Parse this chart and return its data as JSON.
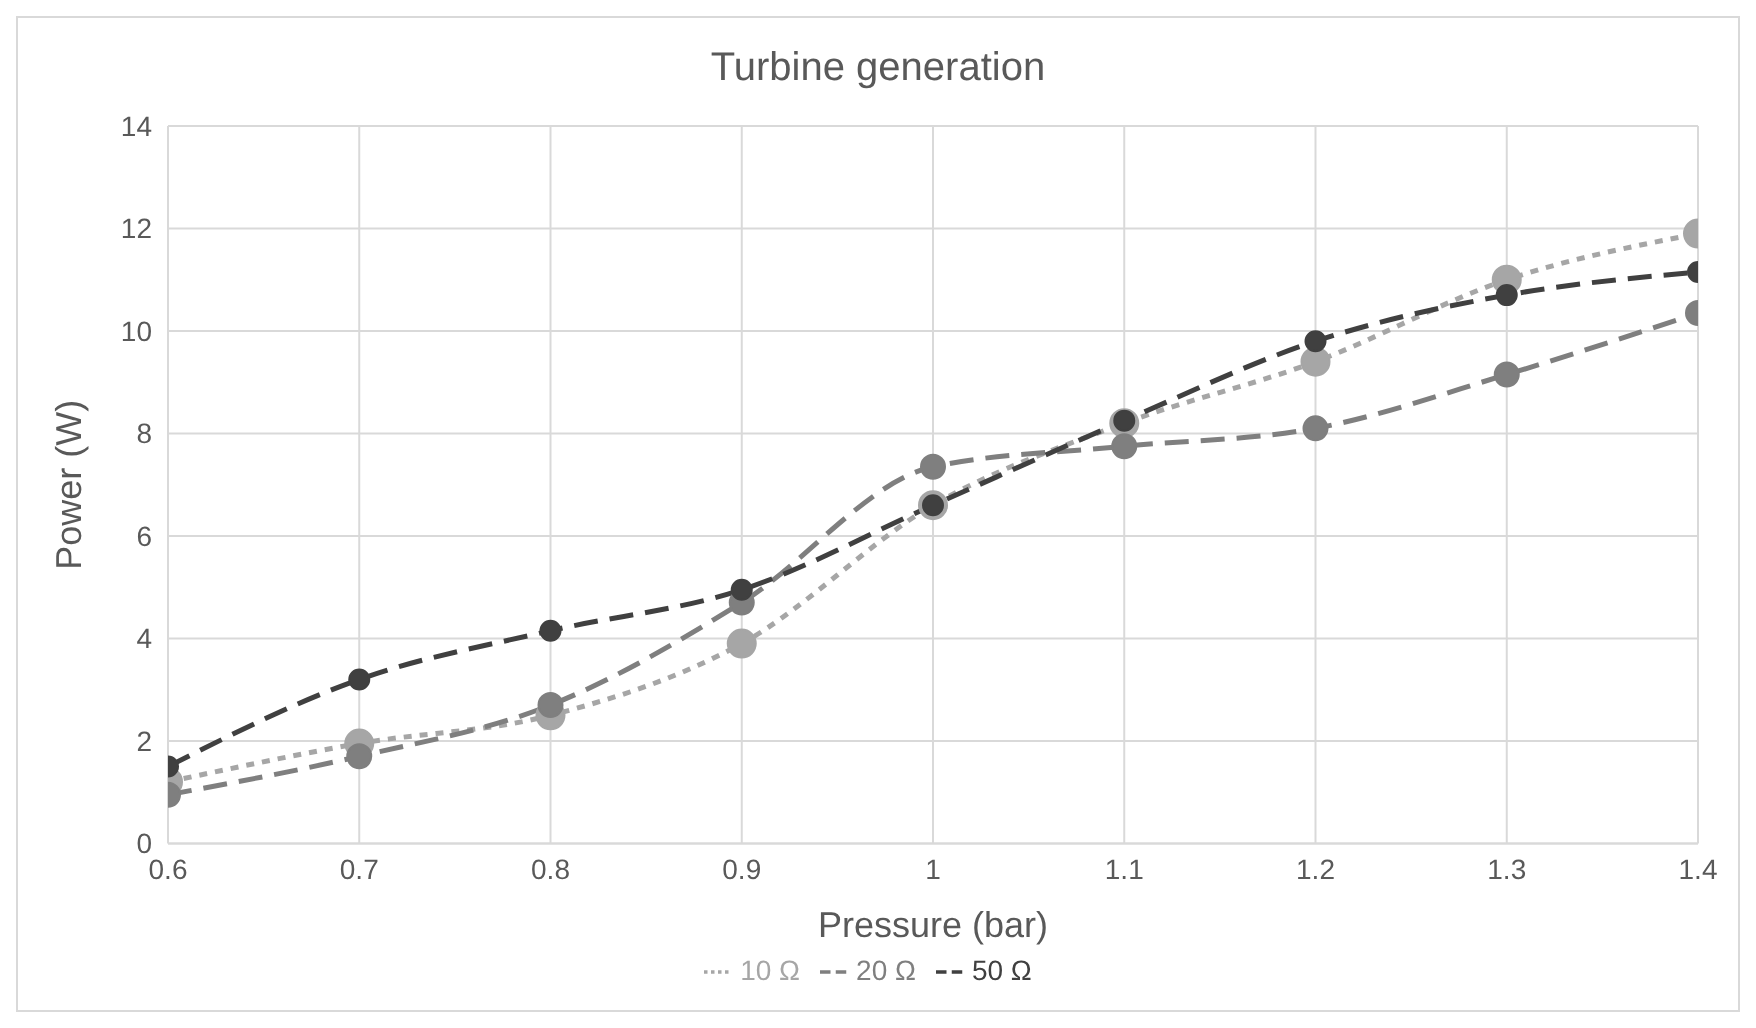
{
  "chart_data": {
    "type": "line",
    "title": "Turbine generation",
    "xlabel": "Pressure (bar)",
    "ylabel": "Power (W)",
    "x": [
      0.6,
      0.7,
      0.8,
      0.9,
      1,
      1.1,
      1.2,
      1.3,
      1.4
    ],
    "series": [
      {
        "name": "10 Ω",
        "color": "#a6a6a6",
        "line_style": "dotted",
        "values": [
          1.2,
          1.95,
          2.5,
          3.9,
          6.6,
          8.2,
          9.4,
          11.0,
          11.9
        ]
      },
      {
        "name": "20 Ω",
        "color": "#7f7f7f",
        "line_style": "dashed",
        "values": [
          0.95,
          1.7,
          2.7,
          4.7,
          7.35,
          7.75,
          8.1,
          9.15,
          10.35
        ]
      },
      {
        "name": "50 Ω",
        "color": "#404040",
        "line_style": "dashed",
        "values": [
          1.5,
          3.2,
          4.15,
          4.95,
          6.6,
          8.25,
          9.8,
          10.7,
          11.15
        ]
      }
    ],
    "xlim": [
      0.6,
      1.4
    ],
    "xticks": [
      0.6,
      0.7,
      0.8,
      0.9,
      1,
      1.1,
      1.2,
      1.3,
      1.4
    ],
    "ylim": [
      0,
      14
    ],
    "yticks": [
      0,
      2,
      4,
      6,
      8,
      10,
      12,
      14
    ],
    "grid": true,
    "legend": "bottom",
    "marker": "circle"
  }
}
